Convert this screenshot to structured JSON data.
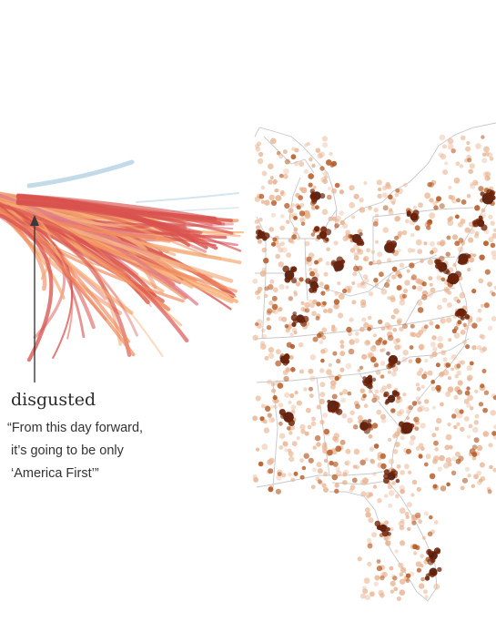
{
  "annotation": {
    "word": "disgusted",
    "quote_lines": [
      "“From this day forward,",
      "it’s going to be only",
      "‘America First’”"
    ]
  },
  "colors": {
    "background": "#ffffff",
    "arc_warm_light": "#f6a86e",
    "arc_warm_mid": "#f08a5d",
    "arc_warm_dark": "#d9534f",
    "arc_pink": "#e07a8a",
    "arc_cool": "#b9d3e4",
    "dot_dark": "#4a1204",
    "dot_light": "#e8b28f",
    "map_border": "#bdbdbd"
  },
  "icons": {
    "pointer": "arrow-up-line"
  }
}
